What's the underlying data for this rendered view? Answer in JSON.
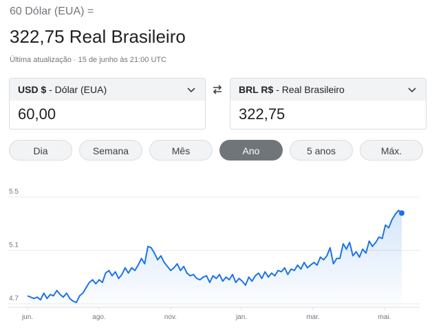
{
  "header": {
    "subtitle": "60 Dólar (EUA) =",
    "result": "322,75 Real Brasileiro",
    "updated": "Última atualização · 15 de junho às 21:00 UTC"
  },
  "from": {
    "code": "USD $",
    "name": " - Dólar (EUA)",
    "value": "60,00"
  },
  "to": {
    "code": "BRL R$",
    "name": " - Real Brasileiro",
    "value": "322,75"
  },
  "tabs": [
    {
      "label": "Dia",
      "active": false
    },
    {
      "label": "Semana",
      "active": false
    },
    {
      "label": "Mês",
      "active": false
    },
    {
      "label": "Ano",
      "active": true
    },
    {
      "label": "5 anos",
      "active": false
    },
    {
      "label": "Máx.",
      "active": false
    }
  ],
  "colors": {
    "line": "#1a73e8",
    "active_tab": "#70757a"
  },
  "icons": {
    "swap": "swap-arrows-icon",
    "dropdown": "chevron-down-icon"
  },
  "chart_data": {
    "type": "line",
    "y_ticks": [
      "5.5",
      "5.1",
      "4.7"
    ],
    "x_ticks": [
      "jun.",
      "ago.",
      "nov.",
      "jan.",
      "mar.",
      "mai."
    ],
    "ylim": [
      4.7,
      5.5
    ],
    "grid": true,
    "values": [
      4.76,
      4.75,
      4.74,
      4.75,
      4.73,
      4.78,
      4.74,
      4.77,
      4.76,
      4.8,
      4.77,
      4.75,
      4.78,
      4.74,
      4.72,
      4.71,
      4.76,
      4.78,
      4.82,
      4.86,
      4.88,
      4.85,
      4.88,
      4.86,
      4.93,
      4.95,
      4.91,
      4.94,
      4.89,
      4.92,
      4.97,
      4.93,
      4.97,
      4.95,
      4.99,
      5.04,
      5.0,
      5.13,
      5.12,
      5.08,
      5.03,
      5.06,
      5.01,
      4.98,
      4.95,
      4.97,
      5.0,
      4.95,
      4.98,
      4.93,
      4.91,
      4.92,
      4.89,
      4.88,
      4.9,
      4.91,
      4.86,
      4.91,
      4.89,
      4.92,
      4.87,
      4.9,
      4.88,
      4.92,
      4.86,
      4.89,
      4.87,
      4.84,
      4.9,
      4.87,
      4.91,
      4.93,
      4.89,
      4.94,
      4.9,
      4.93,
      4.91,
      4.95,
      4.94,
      4.97,
      4.92,
      4.96,
      4.95,
      4.99,
      4.96,
      5.01,
      4.97,
      4.99,
      5.01,
      4.99,
      5.05,
      5.03,
      5.06,
      5.12,
      5.0,
      5.04,
      5.04,
      5.15,
      5.11,
      5.16,
      5.06,
      5.09,
      5.05,
      5.11,
      5.08,
      5.17,
      5.13,
      5.16,
      5.2,
      5.19,
      5.29,
      5.27,
      5.33,
      5.37,
      5.4,
      5.38
    ]
  }
}
